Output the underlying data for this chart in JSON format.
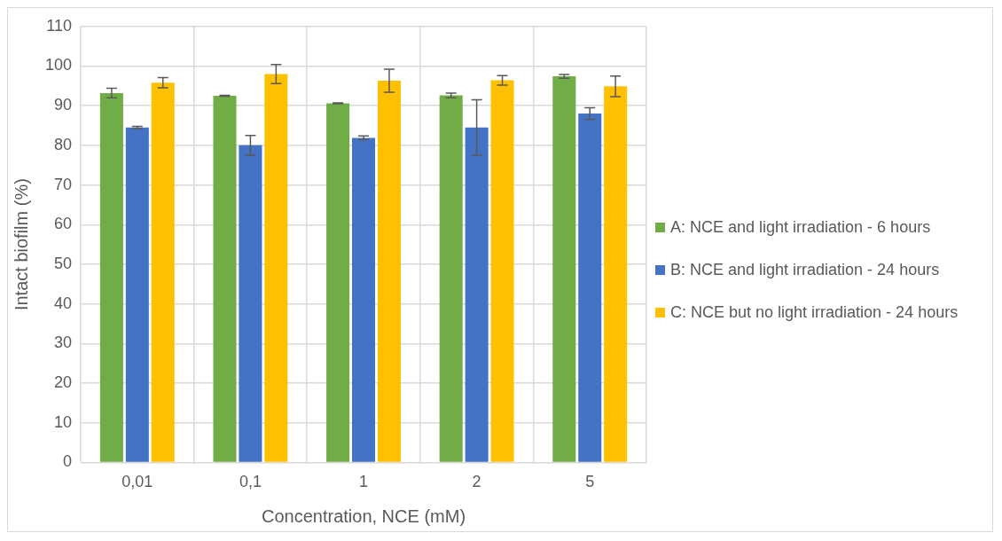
{
  "chart_data": {
    "type": "bar",
    "xlabel": "Concentration, NCE (mM)",
    "ylabel": "Intact biofilm (%)",
    "categories": [
      "0,01",
      "0,1",
      "1",
      "2",
      "5"
    ],
    "series": [
      {
        "name": "A: NCE and light irradiation - 6 hours",
        "color": "#70ad47",
        "values": [
          93.2,
          92.5,
          90.6,
          92.6,
          97.4
        ],
        "errors": [
          1.2,
          0.1,
          0.1,
          0.6,
          0.5
        ]
      },
      {
        "name": "B: NCE and light irradiation - 24 hours",
        "color": "#4472c4",
        "values": [
          84.5,
          80.0,
          81.9,
          84.5,
          88.0
        ],
        "errors": [
          0.3,
          2.5,
          0.5,
          7.0,
          1.5
        ]
      },
      {
        "name": "C: NCE but no light irradiation - 24 hours",
        "color": "#ffc000",
        "values": [
          95.8,
          98.0,
          96.3,
          96.4,
          94.9
        ],
        "errors": [
          1.3,
          2.4,
          2.9,
          1.2,
          2.6
        ]
      }
    ],
    "ylim": [
      0,
      110
    ],
    "yticks": [
      0,
      10,
      20,
      30,
      40,
      50,
      60,
      70,
      80,
      90,
      100,
      110
    ],
    "grid": true,
    "legend": "right"
  }
}
